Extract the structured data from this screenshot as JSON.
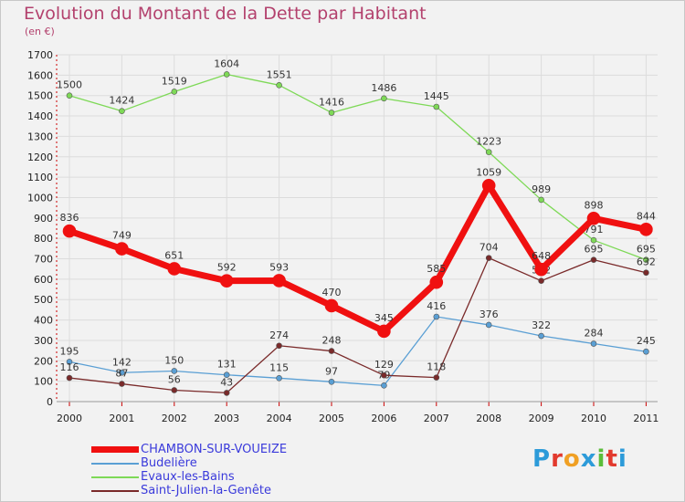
{
  "header": {
    "title": "Evolution du Montant de la Dette par Habitant",
    "subtitle": "(en €)"
  },
  "logo": {
    "text": "Proxiti",
    "colors": [
      "#2d9bd9",
      "#e23a2e",
      "#f0a024",
      "#2d9bd9",
      "#5bbd3a",
      "#e23a2e",
      "#2d9bd9"
    ]
  },
  "chart_data": {
    "type": "line",
    "x": [
      "2000",
      "2001",
      "2002",
      "2003",
      "2004",
      "2005",
      "2006",
      "2007",
      "2008",
      "2009",
      "2010",
      "2011"
    ],
    "ylim": [
      0,
      1700
    ],
    "yticks": [
      "0",
      "100",
      "200",
      "300",
      "400",
      "500",
      "600",
      "700",
      "800",
      "900",
      "1000",
      "1100",
      "1200",
      "1300",
      "1400",
      "1500",
      "1600",
      "1700"
    ],
    "grid": true,
    "legend_position": "bottom-left",
    "series": [
      {
        "name": "Evaux-les-Bains",
        "color": "#7ed957",
        "values": [
          1500,
          1424,
          1519,
          1604,
          1551,
          1416,
          1486,
          1445,
          1223,
          989,
          791,
          695
        ],
        "labels": [
          "1500",
          "1424",
          "1519",
          "1604",
          "1551",
          "1416",
          "1486",
          "1445",
          "1223",
          "989",
          "791",
          "695"
        ]
      },
      {
        "name": "Budelière",
        "color": "#5a9fd4",
        "values": [
          195,
          142,
          150,
          131,
          115,
          97,
          79,
          416,
          376,
          322,
          284,
          245
        ],
        "labels": [
          "195",
          "142",
          "150",
          "131",
          "115",
          "97",
          "79",
          "416",
          "376",
          "322",
          "284",
          "245"
        ]
      },
      {
        "name": "Saint-Julien-la-Genête",
        "color": "#7a2a2a",
        "values": [
          116,
          87,
          56,
          43,
          274,
          248,
          129,
          118,
          704,
          592,
          695,
          632
        ],
        "labels": [
          "116",
          "87",
          "56",
          "43",
          "274",
          "248",
          "129",
          "118",
          "704",
          "592",
          "695",
          "632"
        ]
      },
      {
        "name": "CHAMBON-SUR-VOUEIZE",
        "color": "#f01010",
        "bold": true,
        "values": [
          836,
          749,
          651,
          592,
          593,
          470,
          345,
          585,
          1059,
          648,
          898,
          844
        ],
        "labels": [
          "836",
          "749",
          "651",
          "592",
          "593",
          "470",
          "345",
          "585",
          "1059",
          "648",
          "898",
          "844"
        ]
      }
    ],
    "legend": [
      {
        "name": "CHAMBON-SUR-VOUEIZE",
        "color": "#f01010",
        "bold": true
      },
      {
        "name": "Budelière",
        "color": "#5a9fd4",
        "bold": false
      },
      {
        "name": "Evaux-les-Bains",
        "color": "#7ed957",
        "bold": false
      },
      {
        "name": "Saint-Julien-la-Genête",
        "color": "#7a2a2a",
        "bold": false
      }
    ]
  }
}
